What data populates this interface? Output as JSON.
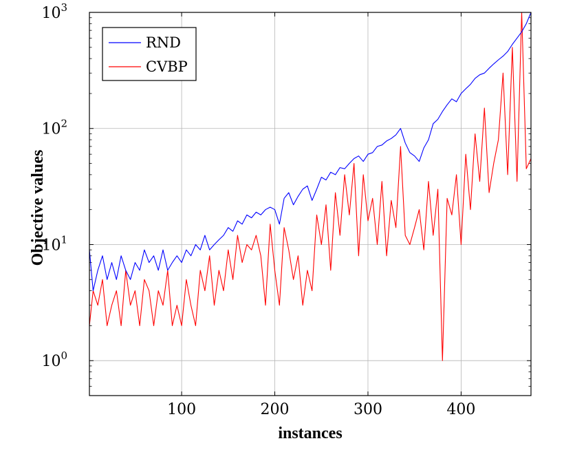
{
  "chart_data": {
    "type": "line",
    "title": "",
    "xlabel": "instances",
    "ylabel": "Objective values",
    "xlim": [
      1,
      475
    ],
    "ylim": [
      0.5,
      1000
    ],
    "yscale": "log",
    "grid": true,
    "legend_position": "top-left",
    "x_ticks": [
      100,
      200,
      300,
      400
    ],
    "y_ticks": [
      {
        "value": 1,
        "base": "10",
        "exp": "0"
      },
      {
        "value": 10,
        "base": "10",
        "exp": "1"
      },
      {
        "value": 100,
        "base": "10",
        "exp": "2"
      },
      {
        "value": 1000,
        "base": "10",
        "exp": "3"
      }
    ],
    "series": [
      {
        "name": "RND",
        "color": "#0000ff",
        "x": [
          1,
          5,
          10,
          15,
          20,
          25,
          30,
          35,
          40,
          45,
          50,
          55,
          60,
          65,
          70,
          75,
          80,
          85,
          90,
          95,
          100,
          105,
          110,
          115,
          120,
          125,
          130,
          135,
          140,
          145,
          150,
          155,
          160,
          165,
          170,
          175,
          180,
          185,
          190,
          195,
          200,
          205,
          210,
          215,
          220,
          225,
          230,
          235,
          240,
          245,
          250,
          255,
          260,
          265,
          270,
          275,
          280,
          285,
          290,
          295,
          300,
          305,
          310,
          315,
          320,
          325,
          330,
          335,
          340,
          345,
          350,
          355,
          360,
          365,
          370,
          375,
          380,
          385,
          390,
          395,
          400,
          405,
          410,
          415,
          420,
          425,
          430,
          435,
          440,
          445,
          450,
          455,
          460,
          465,
          470,
          475
        ],
        "values": [
          9,
          4,
          6,
          8,
          5,
          7,
          5,
          8,
          6,
          5,
          7,
          6,
          9,
          7,
          8,
          6,
          9,
          6,
          7,
          8,
          7,
          9,
          8,
          10,
          9,
          12,
          9,
          10,
          11,
          12,
          14,
          13,
          16,
          15,
          18,
          17,
          19,
          18,
          20,
          21,
          20,
          15,
          25,
          28,
          22,
          26,
          30,
          32,
          24,
          30,
          38,
          36,
          42,
          40,
          46,
          45,
          50,
          55,
          58,
          52,
          60,
          62,
          70,
          72,
          78,
          82,
          88,
          100,
          75,
          62,
          58,
          52,
          68,
          80,
          110,
          120,
          140,
          160,
          180,
          170,
          200,
          220,
          240,
          270,
          290,
          300,
          330,
          360,
          390,
          420,
          460,
          530,
          600,
          680,
          800,
          1000
        ]
      },
      {
        "name": "CVBP",
        "color": "#ff0000",
        "x": [
          1,
          5,
          10,
          15,
          20,
          25,
          30,
          35,
          40,
          45,
          50,
          55,
          60,
          65,
          70,
          75,
          80,
          85,
          90,
          95,
          100,
          105,
          110,
          115,
          120,
          125,
          130,
          135,
          140,
          145,
          150,
          155,
          160,
          165,
          170,
          175,
          180,
          185,
          190,
          195,
          200,
          205,
          210,
          215,
          220,
          225,
          230,
          235,
          240,
          245,
          250,
          255,
          260,
          265,
          270,
          275,
          280,
          285,
          290,
          295,
          300,
          305,
          310,
          315,
          320,
          325,
          330,
          335,
          340,
          345,
          350,
          355,
          360,
          365,
          370,
          375,
          380,
          385,
          390,
          395,
          400,
          405,
          410,
          415,
          420,
          425,
          430,
          435,
          440,
          445,
          450,
          455,
          460,
          465,
          470,
          475
        ],
        "values": [
          2,
          4,
          3,
          5,
          2,
          3,
          4,
          2,
          6,
          3,
          4,
          2,
          5,
          4,
          2,
          4,
          3,
          6,
          2,
          3,
          2,
          5,
          3,
          2,
          6,
          4,
          8,
          3,
          6,
          4,
          9,
          5,
          12,
          7,
          10,
          9,
          12,
          8,
          3,
          15,
          6,
          3,
          14,
          9,
          5,
          8,
          3,
          6,
          4,
          18,
          10,
          22,
          6,
          28,
          12,
          40,
          18,
          50,
          8,
          40,
          16,
          25,
          10,
          35,
          8,
          24,
          14,
          70,
          12,
          10,
          14,
          20,
          9,
          35,
          12,
          30,
          1,
          25,
          18,
          40,
          10,
          60,
          20,
          90,
          35,
          150,
          28,
          50,
          80,
          300,
          40,
          500,
          35,
          1000,
          45,
          55
        ]
      }
    ]
  }
}
